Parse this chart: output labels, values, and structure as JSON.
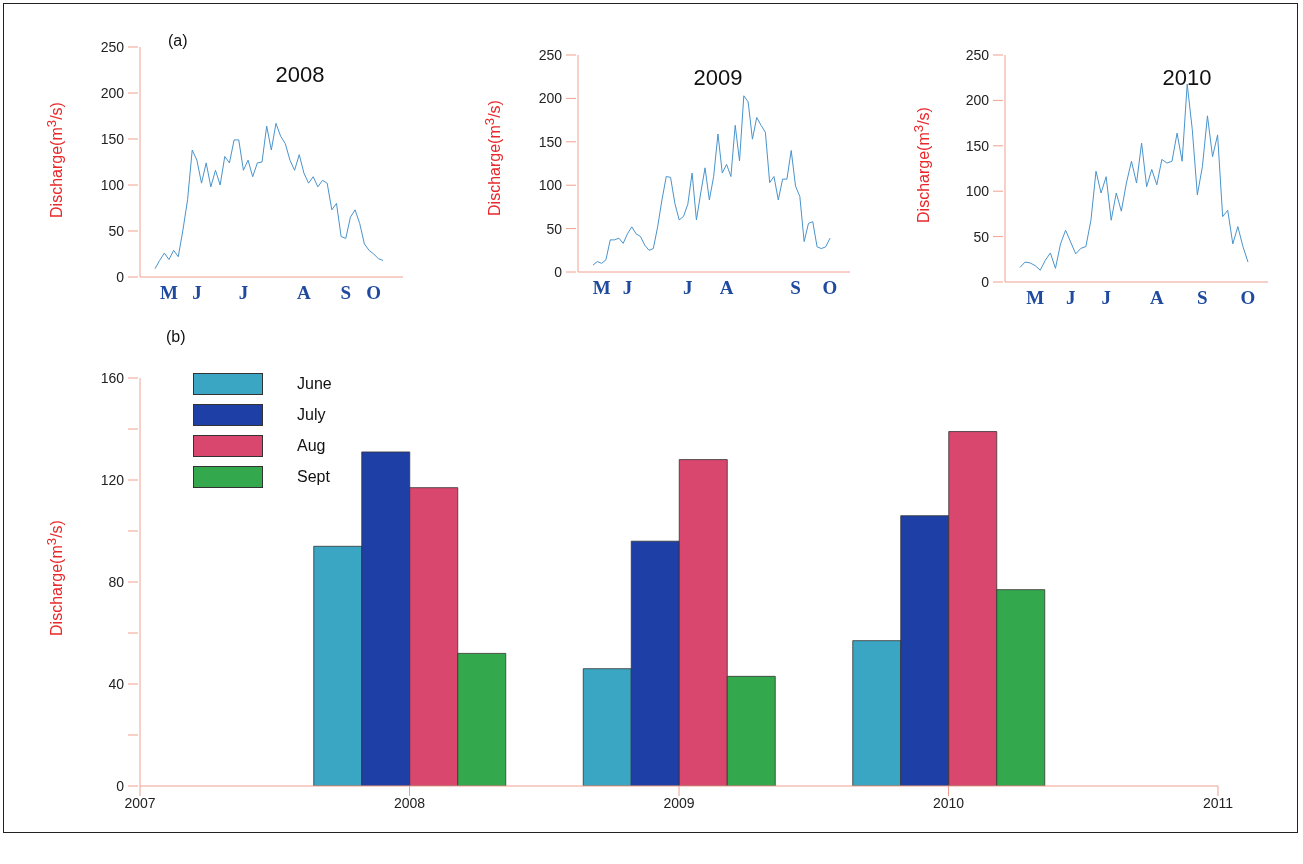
{
  "chart_data": [
    {
      "type": "line",
      "title": "2008",
      "ylabel": "Discharge(m$^{3}$/s)",
      "annotations": [
        "(a)"
      ],
      "color": "#4a94cc",
      "categories": [
        null,
        null,
        null,
        "M",
        null,
        null,
        null,
        null,
        null,
        "J",
        null,
        null,
        null,
        null,
        null,
        null,
        null,
        null,
        null,
        "J",
        null,
        null,
        null,
        null,
        null,
        null,
        null,
        null,
        null,
        null,
        null,
        null,
        "A",
        null,
        null,
        null,
        null,
        null,
        null,
        null,
        null,
        "S",
        null,
        null,
        null,
        null,
        null,
        "O",
        null,
        null
      ],
      "values": [
        9,
        18,
        26,
        19,
        29,
        22,
        51,
        84,
        138,
        127,
        102,
        124,
        98,
        116,
        100,
        131,
        124,
        149,
        149,
        116,
        127,
        109,
        124,
        125,
        164,
        138,
        167,
        153,
        145,
        127,
        116,
        133,
        113,
        102,
        109,
        98,
        105,
        102,
        73,
        80,
        44,
        42,
        65,
        73,
        58,
        36,
        29,
        25,
        20,
        18
      ],
      "ylim": [
        0,
        250
      ],
      "yticks": [
        0,
        50,
        100,
        150,
        200,
        250
      ]
    },
    {
      "type": "line",
      "title": "2009",
      "ylabel": "Discharge(m$^{3}$/s)",
      "color": "#4a94cc",
      "categories": [
        null,
        null,
        "M",
        null,
        null,
        null,
        null,
        null,
        "J",
        null,
        null,
        null,
        null,
        null,
        null,
        null,
        null,
        null,
        null,
        null,
        null,
        null,
        "J",
        null,
        null,
        null,
        null,
        null,
        null,
        null,
        null,
        "A",
        null,
        null,
        null,
        null,
        null,
        null,
        null,
        null,
        null,
        null,
        null,
        null,
        null,
        null,
        null,
        "S",
        null,
        null,
        null,
        null,
        null,
        null,
        null,
        "O"
      ],
      "values": [
        8,
        12,
        10,
        14,
        37,
        37,
        39,
        33,
        44,
        52,
        44,
        41,
        31,
        25,
        27,
        52,
        83,
        110,
        109,
        79,
        60,
        64,
        78,
        114,
        60,
        91,
        120,
        83,
        110,
        159,
        114,
        124,
        110,
        169,
        128,
        203,
        196,
        153,
        178,
        169,
        161,
        103,
        110,
        83,
        107,
        107,
        140,
        99,
        87,
        35,
        56,
        58,
        29,
        27,
        29,
        39
      ],
      "ylim": [
        0,
        250
      ],
      "yticks": [
        0,
        50,
        100,
        150,
        200,
        250
      ]
    },
    {
      "type": "line",
      "title": "2010",
      "ylabel": "Discharge(m$^{3}$/s)",
      "color": "#4a94cc",
      "categories": [
        null,
        null,
        null,
        "M",
        null,
        null,
        null,
        null,
        null,
        null,
        "J",
        null,
        null,
        null,
        null,
        null,
        null,
        "J",
        null,
        null,
        null,
        null,
        null,
        null,
        null,
        null,
        null,
        "A",
        null,
        null,
        null,
        null,
        null,
        null,
        null,
        null,
        "S",
        null,
        null,
        null,
        null,
        null,
        null,
        null,
        null,
        "O"
      ],
      "values": [
        16,
        22,
        21,
        18,
        13,
        24,
        32,
        15,
        42,
        57,
        44,
        31,
        37,
        39,
        68,
        122,
        98,
        116,
        68,
        98,
        78,
        109,
        133,
        109,
        153,
        105,
        124,
        107,
        135,
        131,
        133,
        164,
        133,
        218,
        168,
        96,
        127,
        183,
        138,
        162,
        72,
        79,
        42,
        61,
        39,
        22
      ],
      "ylim": [
        0,
        250
      ],
      "yticks": [
        0,
        50,
        100,
        150,
        200,
        250
      ]
    },
    {
      "type": "bar",
      "ylabel": "Discharge(m$^{3}$/s)",
      "annotations": [
        "(b)"
      ],
      "legend": "top left",
      "x": [
        2008,
        2009,
        2010
      ],
      "series": [
        {
          "name": "June",
          "color": "#3aa6c4",
          "values": [
            94,
            46,
            57
          ]
        },
        {
          "name": "July",
          "color": "#1e3fa6",
          "values": [
            131,
            96,
            106
          ]
        },
        {
          "name": "Aug",
          "color": "#d9466e",
          "values": [
            117,
            128,
            139
          ]
        },
        {
          "name": "Sept",
          "color": "#34a84c",
          "values": [
            52,
            43,
            77
          ]
        }
      ],
      "xlim": [
        2007,
        2011
      ],
      "xticks": [
        2007,
        2008,
        2009,
        2010,
        2011
      ],
      "ylim": [
        0,
        160
      ],
      "yticks": [
        0,
        {
          "value": 20,
          "label": null
        },
        40,
        {
          "value": 60,
          "label": null
        },
        80,
        {
          "value": 100,
          "label": null
        },
        120,
        {
          "value": 140,
          "label": null
        },
        160
      ]
    }
  ]
}
